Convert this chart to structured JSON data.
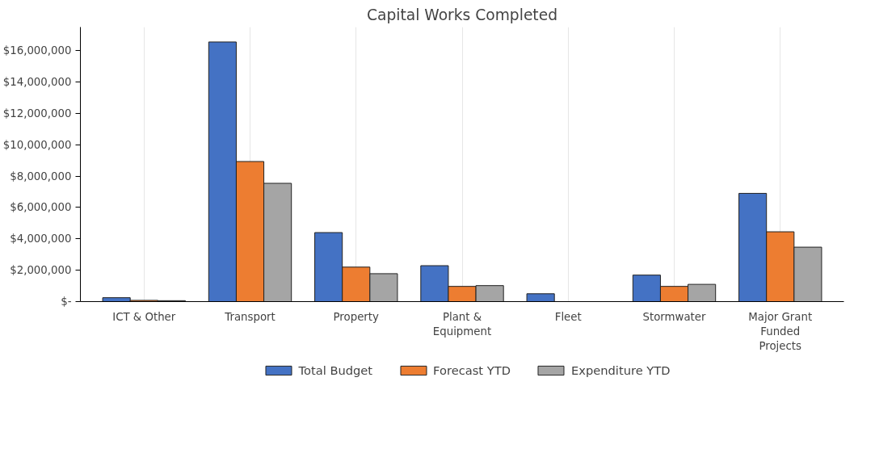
{
  "chart_data": {
    "type": "bar",
    "title": "Capital Works Completed",
    "categories": [
      "ICT & Other",
      "Transport",
      "Property",
      "Plant &\nEquipment",
      "Fleet",
      "Stormwater",
      "Major Grant\nFunded\nProjects"
    ],
    "series": [
      {
        "name": "Total Budget",
        "color": "#4472c4",
        "values": [
          250000,
          16550000,
          4400000,
          2290000,
          500000,
          1690000,
          6900000
        ]
      },
      {
        "name": "Forecast YTD",
        "color": "#ed7d31",
        "values": [
          80000,
          8930000,
          2200000,
          970000,
          0,
          970000,
          4450000
        ]
      },
      {
        "name": "Expenditure YTD",
        "color": "#a5a5a5",
        "values": [
          60000,
          7540000,
          1780000,
          1020000,
          0,
          1100000,
          3470000
        ]
      }
    ],
    "ylim": [
      0,
      17500000
    ],
    "yticks": [
      {
        "value": 0,
        "label": "$-"
      },
      {
        "value": 2000000,
        "label": "$2,000,000"
      },
      {
        "value": 4000000,
        "label": "$4,000,000"
      },
      {
        "value": 6000000,
        "label": "$6,000,000"
      },
      {
        "value": 8000000,
        "label": "$8,000,000"
      },
      {
        "value": 10000000,
        "label": "$10,000,000"
      },
      {
        "value": 12000000,
        "label": "$12,000,000"
      },
      {
        "value": 14000000,
        "label": "$14,000,000"
      },
      {
        "value": 16000000,
        "label": "$16,000,000"
      }
    ],
    "grid": "x",
    "legend": "bottom"
  }
}
